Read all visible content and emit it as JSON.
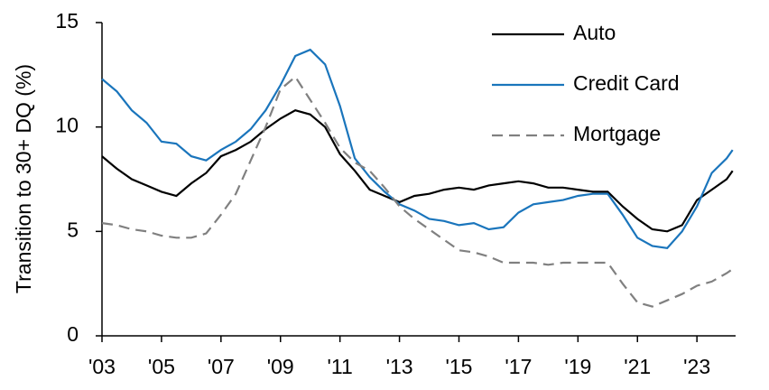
{
  "chart_data": {
    "type": "line",
    "y_label": "Transition to 30+ DQ (%)",
    "x": [
      2003.0,
      2003.5,
      2004.0,
      2004.5,
      2005.0,
      2005.5,
      2006.0,
      2006.5,
      2007.0,
      2007.5,
      2008.0,
      2008.5,
      2009.0,
      2009.5,
      2010.0,
      2010.5,
      2011.0,
      2011.5,
      2012.0,
      2012.5,
      2013.0,
      2013.5,
      2014.0,
      2014.5,
      2015.0,
      2015.5,
      2016.0,
      2016.5,
      2017.0,
      2017.5,
      2018.0,
      2018.5,
      2019.0,
      2019.5,
      2020.0,
      2020.5,
      2021.0,
      2021.5,
      2022.0,
      2022.5,
      2023.0,
      2023.5,
      2024.0,
      2024.2
    ],
    "series": [
      {
        "name": "Auto",
        "color": "#000000",
        "dash": false,
        "values": [
          8.6,
          8.0,
          7.5,
          7.2,
          6.9,
          6.7,
          7.3,
          7.8,
          8.6,
          8.9,
          9.3,
          9.9,
          10.4,
          10.8,
          10.6,
          10.0,
          8.7,
          7.9,
          7.0,
          6.7,
          6.4,
          6.7,
          6.8,
          7.0,
          7.1,
          7.0,
          7.2,
          7.3,
          7.4,
          7.3,
          7.1,
          7.1,
          7.0,
          6.9,
          6.9,
          6.2,
          5.6,
          5.1,
          5.0,
          5.3,
          6.5,
          7.0,
          7.5,
          7.9
        ]
      },
      {
        "name": "Credit Card",
        "color": "#1a75bc",
        "dash": false,
        "values": [
          12.3,
          11.7,
          10.8,
          10.2,
          9.3,
          9.2,
          8.6,
          8.4,
          8.9,
          9.3,
          9.9,
          10.8,
          12.0,
          13.4,
          13.7,
          13.0,
          11.0,
          8.5,
          7.6,
          6.9,
          6.3,
          6.0,
          5.6,
          5.5,
          5.3,
          5.4,
          5.1,
          5.2,
          5.9,
          6.3,
          6.4,
          6.5,
          6.7,
          6.8,
          6.8,
          5.8,
          4.7,
          4.3,
          4.2,
          5.0,
          6.2,
          7.8,
          8.5,
          8.9
        ]
      },
      {
        "name": "Mortgage",
        "color": "#808080",
        "dash": true,
        "values": [
          5.4,
          5.3,
          5.1,
          5.0,
          4.8,
          4.7,
          4.7,
          4.9,
          5.8,
          6.8,
          8.4,
          10.0,
          11.8,
          12.4,
          11.3,
          10.2,
          9.0,
          8.3,
          7.9,
          7.1,
          6.2,
          5.6,
          5.1,
          4.6,
          4.1,
          4.0,
          3.8,
          3.5,
          3.5,
          3.5,
          3.4,
          3.5,
          3.5,
          3.5,
          3.5,
          2.5,
          1.6,
          1.4,
          1.7,
          2.0,
          2.4,
          2.6,
          3.0,
          3.2
        ]
      }
    ],
    "xlim": [
      2003,
      2024.3
    ],
    "xticks": [
      {
        "value": 2003,
        "label": "'03"
      },
      {
        "value": 2005,
        "label": "'05"
      },
      {
        "value": 2007,
        "label": "'07"
      },
      {
        "value": 2009,
        "label": "'09"
      },
      {
        "value": 2011,
        "label": "'11"
      },
      {
        "value": 2013,
        "label": "'13"
      },
      {
        "value": 2015,
        "label": "'15"
      },
      {
        "value": 2017,
        "label": "'17"
      },
      {
        "value": 2019,
        "label": "'19"
      },
      {
        "value": 2021,
        "label": "'21"
      },
      {
        "value": 2023,
        "label": "'23"
      }
    ],
    "ylim": [
      0,
      15
    ],
    "yticks": [
      0,
      5,
      10,
      15
    ],
    "grid": false,
    "legend": "upper right"
  }
}
